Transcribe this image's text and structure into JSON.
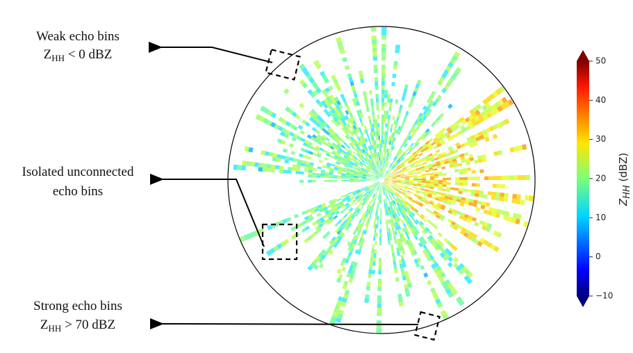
{
  "annotations": [
    {
      "line1": "Weak echo bins",
      "line2": {
        "symbol": "Z",
        "subscript": "HH",
        "text": " < 0 dBZ"
      }
    },
    {
      "line1": "Isolated unconnected",
      "line2": {
        "text": "echo bins"
      }
    },
    {
      "line1": "Strong echo bins",
      "line2": {
        "symbol": "Z",
        "subscript": "HH",
        "text": " > 70 dBZ"
      }
    }
  ],
  "colorbar": {
    "label": {
      "symbol": "Z",
      "subscript": "HH",
      "text": " (dBZ)"
    },
    "lim": [
      -10,
      50
    ],
    "ticks": [
      {
        "value": -10,
        "label": "−10"
      },
      0,
      10,
      20,
      30,
      40,
      50
    ]
  }
}
